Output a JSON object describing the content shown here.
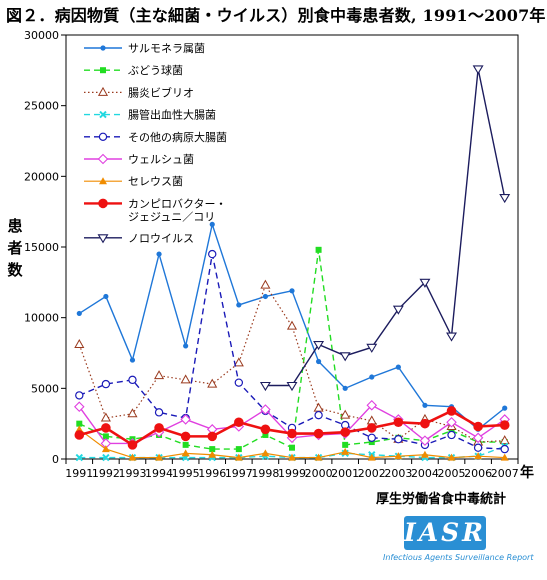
{
  "title": "図２．病因物質（主な細菌・ウイルス）別食中毒患者数, 1991〜2007年",
  "ylabel_chars": [
    "患",
    "者",
    "数"
  ],
  "x_unit": "年",
  "source": "厚生労働省食中毒統計",
  "logo": {
    "text": "IASR",
    "subtitle": "Infectious Agents Surveillance Report"
  },
  "chart_data": {
    "type": "line",
    "x": [
      1991,
      1992,
      1993,
      1994,
      1995,
      1996,
      1997,
      1998,
      1999,
      2000,
      2001,
      2002,
      2003,
      2004,
      2005,
      2006,
      2007
    ],
    "ylim": [
      0,
      30000
    ],
    "yticks": [
      0,
      5000,
      10000,
      15000,
      20000,
      25000,
      30000
    ],
    "legend_position": "top-left",
    "grid": false,
    "series": [
      {
        "name": "サルモネラ属菌",
        "color": "#1f77d8",
        "dash": "",
        "width": 1.4,
        "marker": "dot",
        "values": [
          10300,
          11500,
          7000,
          14500,
          8000,
          16600,
          10900,
          11500,
          11900,
          6900,
          5000,
          5800,
          6500,
          3800,
          3700,
          2100,
          3600
        ]
      },
      {
        "name": "ぶどう球菌",
        "color": "#22dd22",
        "dash": "6,4",
        "width": 1.4,
        "marker": "square",
        "values": [
          2500,
          1600,
          1400,
          1700,
          1000,
          700,
          700,
          1700,
          800,
          14800,
          1000,
          1200,
          1500,
          1300,
          2000,
          1200,
          1200
        ]
      },
      {
        "name": "腸炎ビブリオ",
        "color": "#9a3a1e",
        "dash": "1.5,2.5",
        "width": 1.2,
        "marker": "triangle-open",
        "values": [
          8100,
          2900,
          3200,
          5900,
          5600,
          5300,
          6800,
          12300,
          9400,
          3600,
          3100,
          2700,
          1400,
          2800,
          2300,
          1200,
          1300
        ]
      },
      {
        "name": "腸管出血性大腸菌",
        "color": "#22d8e0",
        "dash": "6,4",
        "width": 1.4,
        "marker": "x",
        "values": [
          100,
          100,
          100,
          100,
          100,
          100,
          100,
          200,
          100,
          100,
          400,
          300,
          200,
          100,
          100,
          200,
          900
        ]
      },
      {
        "name": "その他の病原大腸菌",
        "color": "#1a1ab8",
        "dash": "6,4",
        "width": 1.4,
        "marker": "circle-open",
        "values": [
          4500,
          5300,
          5600,
          3300,
          2900,
          14500,
          5400,
          3400,
          2200,
          3100,
          2400,
          1500,
          1400,
          1000,
          1700,
          800,
          700
        ]
      },
      {
        "name": "ウェルシュ菌",
        "color": "#e040e0",
        "dash": "",
        "width": 1.4,
        "marker": "diamond-open",
        "values": [
          3700,
          1100,
          1100,
          1900,
          2800,
          2100,
          2300,
          3500,
          1500,
          1700,
          1800,
          3800,
          2800,
          1300,
          2600,
          1500,
          2800
        ]
      },
      {
        "name": "セレウス菌",
        "color": "#f08c00",
        "dash": "",
        "width": 1.2,
        "marker": "triangle",
        "values": [
          2100,
          700,
          100,
          100,
          400,
          300,
          100,
          400,
          100,
          100,
          500,
          100,
          200,
          300,
          100,
          200,
          100
        ]
      },
      {
        "name": "カンピロバクター・ジェジュニ／コリ",
        "color": "#ee1111",
        "dash": "",
        "width": 2.6,
        "marker": "dot-big",
        "values": [
          1700,
          2200,
          1000,
          2200,
          1600,
          1600,
          2600,
          2100,
          1800,
          1800,
          1900,
          2200,
          2600,
          2500,
          3400,
          2300,
          2400
        ]
      },
      {
        "name": "ノロウイルス",
        "color": "#1c1c5e",
        "dash": "",
        "width": 1.4,
        "marker": "triangle-down-open",
        "values": [
          null,
          null,
          null,
          null,
          null,
          null,
          null,
          5200,
          5200,
          8100,
          7300,
          7900,
          10600,
          12500,
          8700,
          27600,
          18500
        ]
      }
    ],
    "legend": [
      {
        "series": 0,
        "lines": [
          "サルモネラ属菌"
        ]
      },
      {
        "series": 1,
        "lines": [
          "ぶどう球菌"
        ]
      },
      {
        "series": 2,
        "lines": [
          "腸炎ビブリオ"
        ]
      },
      {
        "series": 3,
        "lines": [
          "腸管出血性大腸菌"
        ]
      },
      {
        "series": 4,
        "lines": [
          "その他の病原大腸菌"
        ]
      },
      {
        "series": 5,
        "lines": [
          "ウェルシュ菌"
        ]
      },
      {
        "series": 6,
        "lines": [
          "セレウス菌"
        ]
      },
      {
        "series": 7,
        "lines": [
          "カンピロバクター・",
          "ジェジュニ／コリ"
        ]
      },
      {
        "series": 8,
        "lines": [
          "ノロウイルス"
        ]
      }
    ]
  }
}
